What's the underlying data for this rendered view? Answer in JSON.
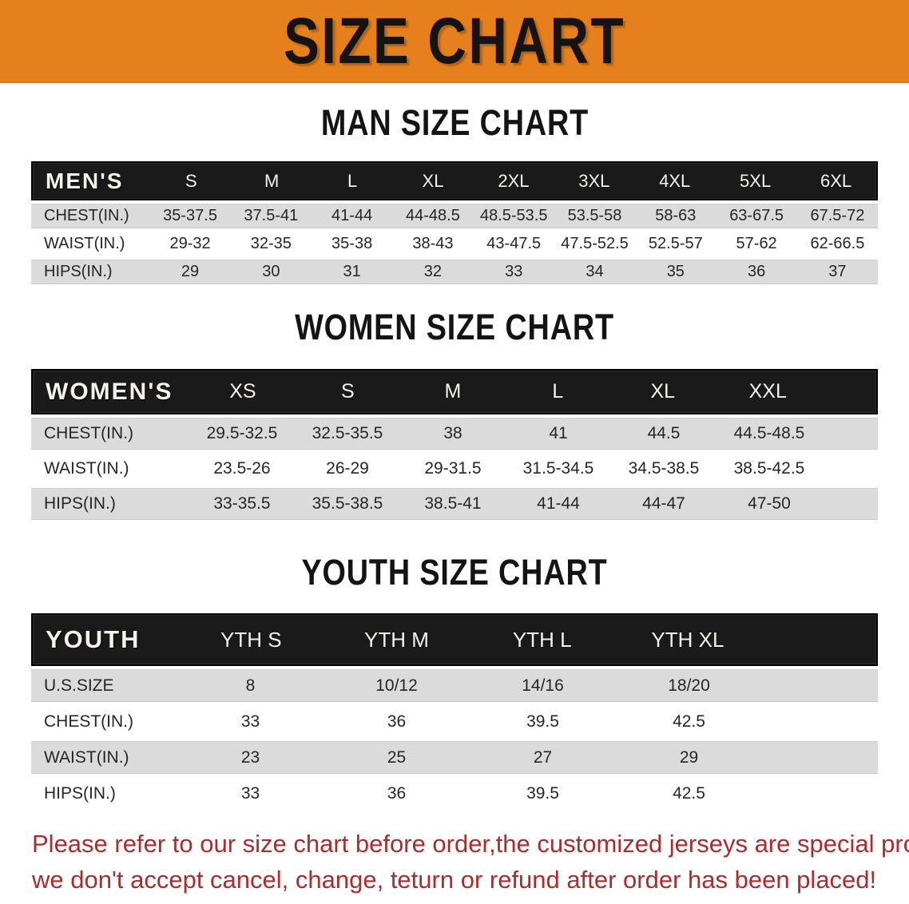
{
  "banner": {
    "title": "SIZE CHART",
    "background_color": "#E5801D",
    "title_color": "#141414"
  },
  "men": {
    "heading": "MAN SIZE CHART",
    "label": "MEN'S",
    "sizes": [
      "S",
      "M",
      "L",
      "XL",
      "2XL",
      "3XL",
      "4XL",
      "5XL",
      "6XL"
    ],
    "rows": [
      {
        "label": "CHEST(IN.)",
        "values": [
          "35-37.5",
          "37.5-41",
          "41-44",
          "44-48.5",
          "48.5-53.5",
          "53.5-58",
          "58-63",
          "63-67.5",
          "67.5-72"
        ]
      },
      {
        "label": "WAIST(IN.)",
        "values": [
          "29-32",
          "32-35",
          "35-38",
          "38-43",
          "43-47.5",
          "47.5-52.5",
          "52.5-57",
          "57-62",
          "62-66.5"
        ]
      },
      {
        "label": "HIPS(IN.)",
        "values": [
          "29",
          "30",
          "31",
          "32",
          "33",
          "34",
          "35",
          "36",
          "37"
        ]
      }
    ]
  },
  "women": {
    "heading": "WOMEN SIZE CHART",
    "label": "WOMEN'S",
    "sizes": [
      "XS",
      "S",
      "M",
      "L",
      "XL",
      "XXL"
    ],
    "rows": [
      {
        "label": "CHEST(IN.)",
        "values": [
          "29.5-32.5",
          "32.5-35.5",
          "38",
          "41",
          "44.5",
          "44.5-48.5"
        ]
      },
      {
        "label": "WAIST(IN.)",
        "values": [
          "23.5-26",
          "26-29",
          "29-31.5",
          "31.5-34.5",
          "34.5-38.5",
          "38.5-42.5"
        ]
      },
      {
        "label": "HIPS(IN.)",
        "values": [
          "33-35.5",
          "35.5-38.5",
          "38.5-41",
          "41-44",
          "44-47",
          "47-50"
        ]
      }
    ]
  },
  "youth": {
    "heading": "YOUTH SIZE CHART",
    "label": "YOUTH",
    "sizes": [
      "YTH S",
      "YTH M",
      "YTH L",
      "YTH XL"
    ],
    "rows": [
      {
        "label": "U.S.SIZE",
        "values": [
          "8",
          "10/12",
          "14/16",
          "18/20"
        ]
      },
      {
        "label": "CHEST(IN.)",
        "values": [
          "33",
          "36",
          "39.5",
          "42.5"
        ]
      },
      {
        "label": "WAIST(IN.)",
        "values": [
          "23",
          "25",
          "27",
          "29"
        ]
      },
      {
        "label": "HIPS(IN.)",
        "values": [
          "33",
          "36",
          "39.5",
          "42.5"
        ]
      }
    ]
  },
  "notice": {
    "line1": "Please refer to our size chart before order,the customized jerseys are special products,",
    "line2": "we don't accept cancel, change, teturn or refund after order has been placed!",
    "text_color": "#AE2B2B"
  }
}
